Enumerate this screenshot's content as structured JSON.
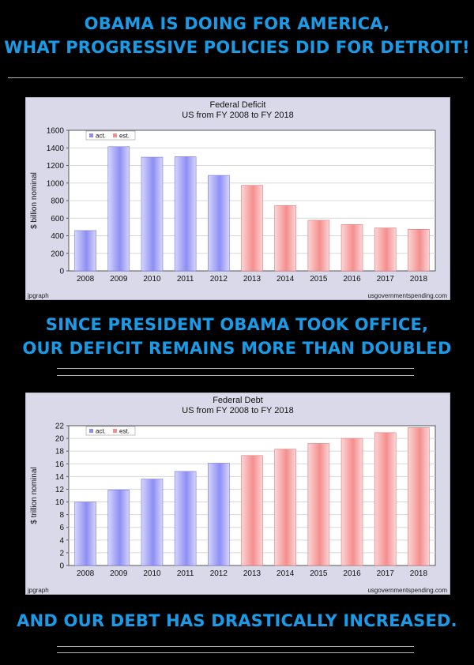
{
  "headline_top": {
    "line1": "OBAMA IS DOING FOR AMERICA,",
    "line2": "WHAT PROGRESSIVE POLICIES DID FOR DETROIT!"
  },
  "headline_middle": {
    "line1": "SINCE PRESIDENT OBAMA TOOK OFFICE,",
    "line2": "OUR DEFICIT REMAINS MORE THAN DOUBLED"
  },
  "headline_bottom": {
    "line1": "AND OUR DEBT HAS DRASTICALLY INCREASED."
  },
  "colors": {
    "headline": "#1a9be8",
    "actual": "#8e8ef5",
    "estimated": "#f58e8e",
    "panel_bg": "#d9d9ea"
  },
  "chart_data": [
    {
      "type": "bar",
      "title": "Federal Deficit",
      "subtitle": "US from FY 2008 to FY 2018",
      "xlabel": "",
      "ylabel": "$ billion nominal",
      "ylim": [
        0,
        1600
      ],
      "yticks": [
        0,
        200,
        400,
        600,
        800,
        1000,
        1200,
        1400,
        1600
      ],
      "grid": true,
      "legend": "top-left",
      "legend_labels": [
        "act.",
        "est."
      ],
      "categories": [
        "2008",
        "2009",
        "2010",
        "2011",
        "2012",
        "2013",
        "2014",
        "2015",
        "2016",
        "2017",
        "2018"
      ],
      "values": [
        459,
        1413,
        1294,
        1300,
        1087,
        973,
        744,
        576,
        528,
        488,
        474
      ],
      "status": [
        "act.",
        "act.",
        "act.",
        "act.",
        "act.",
        "est.",
        "est.",
        "est.",
        "est.",
        "est.",
        "est."
      ],
      "footer_left": "jpgraph",
      "footer_right": "usgovernmentspending.com"
    },
    {
      "type": "bar",
      "title": "Federal Debt",
      "subtitle": "US from FY 2008 to FY 2018",
      "xlabel": "",
      "ylabel": "$ trillion nominal",
      "ylim": [
        0,
        22
      ],
      "yticks": [
        0,
        2,
        4,
        6,
        8,
        10,
        12,
        14,
        16,
        18,
        20,
        22
      ],
      "grid": true,
      "legend": "top-left",
      "legend_labels": [
        "act.",
        "est."
      ],
      "categories": [
        "2008",
        "2009",
        "2010",
        "2011",
        "2012",
        "2013",
        "2014",
        "2015",
        "2016",
        "2017",
        "2018"
      ],
      "values": [
        10.0,
        11.9,
        13.6,
        14.8,
        16.1,
        17.3,
        18.3,
        19.2,
        20.0,
        20.9,
        21.7
      ],
      "status": [
        "act.",
        "act.",
        "act.",
        "act.",
        "act.",
        "est.",
        "est.",
        "est.",
        "est.",
        "est.",
        "est."
      ],
      "footer_left": "jpgraph",
      "footer_right": "usgovernmentspending.com"
    }
  ]
}
